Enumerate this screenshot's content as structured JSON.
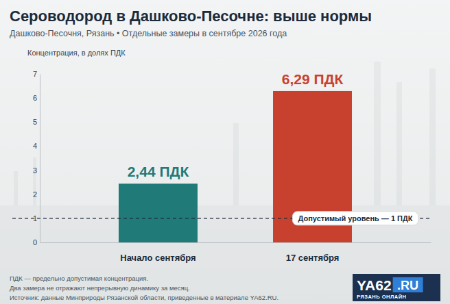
{
  "chart_data": {
    "type": "bar",
    "title": "Сероводород в Дашково-Песочне: выше нормы",
    "subtitle": "Дашково-Песочня, Рязань • Отдельные замеры в сентябре 2026 года",
    "y_label": "Концентрация, в долях ПДК",
    "categories": [
      "Начало сентября",
      "17 сентября"
    ],
    "values": [
      2.44,
      6.29
    ],
    "value_labels": [
      "2,44 ПДК",
      "6,29 ПДК"
    ],
    "colors": [
      "#1f7a78",
      "#c8412f"
    ],
    "data_labels": true,
    "ylim": [
      0,
      7
    ],
    "yticks": [
      0,
      1,
      2,
      3,
      4,
      5,
      6,
      7
    ],
    "grid": false,
    "reference_line": {
      "value": 1,
      "label": "Допустимый уровень — 1 ПДК"
    },
    "notes": [
      "ПДК — предельно допустимая концентрация.",
      "Два замера не отражают непрерывную динамику за месяц.",
      "Источник: данные Минприроды Рязанской области, приведенные в материале YA62.RU."
    ],
    "brand": {
      "name": "YA62",
      "domain": ".RU",
      "tagline": "РЯЗАНЬ ОНЛАЙН"
    }
  }
}
